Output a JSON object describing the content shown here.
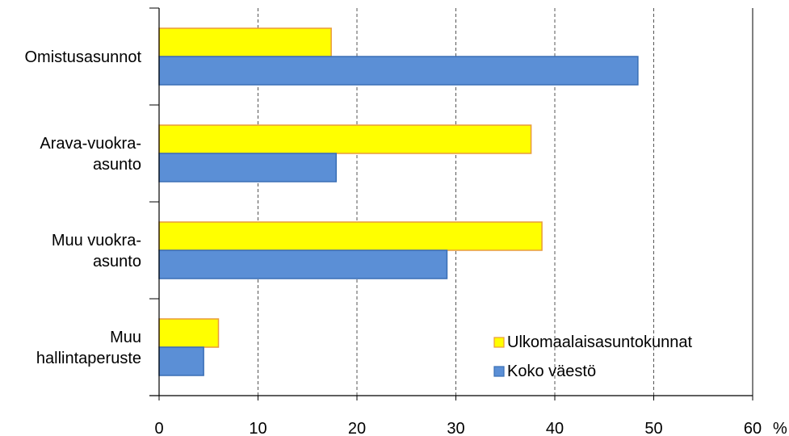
{
  "chart_data": {
    "type": "bar",
    "orientation": "horizontal",
    "categories": [
      [
        "Omistusasunnot"
      ],
      [
        "Arava-vuokra-",
        "asunto"
      ],
      [
        "Muu vuokra-",
        "asunto"
      ],
      [
        "Muu",
        "hallintaperuste"
      ]
    ],
    "series": [
      {
        "name": "Ulkomaalaisasuntokunnat",
        "color": "#ffff00",
        "border": "#e89a3c",
        "values": [
          17.4,
          37.6,
          38.7,
          6.0
        ]
      },
      {
        "name": "Koko väestö",
        "color": "#5b8fd6",
        "border": "#3a6fb5",
        "values": [
          48.4,
          17.9,
          29.1,
          4.5
        ]
      }
    ],
    "xlim": [
      0,
      60
    ],
    "xticks": [
      "0",
      "10",
      "20",
      "30",
      "40",
      "50",
      "60"
    ],
    "unit": "%",
    "grid": true,
    "legend": "bottom-right"
  }
}
